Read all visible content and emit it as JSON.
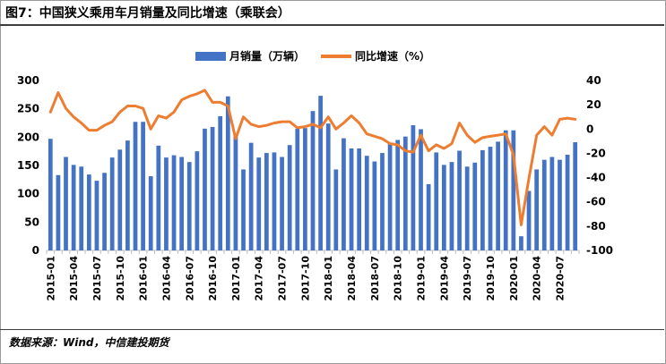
{
  "title": "图7：中国狭义乘用车月销量及同比增速（乘联会）",
  "source": "数据来源：Wind，中信建投期货",
  "colors": {
    "bar": "#4472C4",
    "line": "#ED7D31",
    "axis": "#bfbfbf"
  },
  "chart_data": {
    "type": "bar",
    "categories": [
      "2015-01",
      "2015-02",
      "2015-03",
      "2015-04",
      "2015-05",
      "2015-06",
      "2015-07",
      "2015-08",
      "2015-09",
      "2015-10",
      "2015-11",
      "2015-12",
      "2016-01",
      "2016-02",
      "2016-03",
      "2016-04",
      "2016-05",
      "2016-06",
      "2016-07",
      "2016-08",
      "2016-09",
      "2016-10",
      "2016-11",
      "2016-12",
      "2017-01",
      "2017-02",
      "2017-03",
      "2017-04",
      "2017-05",
      "2017-06",
      "2017-07",
      "2017-08",
      "2017-09",
      "2017-10",
      "2017-11",
      "2017-12",
      "2018-01",
      "2018-02",
      "2018-03",
      "2018-04",
      "2018-05",
      "2018-06",
      "2018-07",
      "2018-08",
      "2018-09",
      "2018-10",
      "2018-11",
      "2018-12",
      "2019-01",
      "2019-02",
      "2019-03",
      "2019-04",
      "2019-05",
      "2019-06",
      "2019-07",
      "2019-08",
      "2019-09",
      "2019-10",
      "2019-11",
      "2019-12",
      "2020-01",
      "2020-02",
      "2020-03",
      "2020-04",
      "2020-05",
      "2020-06",
      "2020-07",
      "2020-08",
      "2020-09"
    ],
    "tick_labels": [
      "2015-01",
      "2015-04",
      "2015-07",
      "2015-10",
      "2016-01",
      "2016-04",
      "2016-07",
      "2016-10",
      "2017-01",
      "2017-04",
      "2017-07",
      "2017-10",
      "2018-01",
      "2018-04",
      "2018-07",
      "2018-10",
      "2019-01",
      "2019-04",
      "2019-07",
      "2019-10",
      "2020-01",
      "2020-04",
      "2020-07"
    ],
    "series": [
      {
        "name": "月销量（万辆）",
        "type": "bar",
        "axis": "left",
        "values": [
          197,
          133,
          165,
          151,
          148,
          134,
          123,
          137,
          164,
          178,
          194,
          227,
          227,
          131,
          185,
          164,
          168,
          165,
          156,
          175,
          215,
          218,
          237,
          272,
          204,
          143,
          190,
          164,
          172,
          173,
          165,
          186,
          215,
          216,
          246,
          273,
          224,
          143,
          198,
          180,
          180,
          167,
          157,
          172,
          190,
          195,
          201,
          221,
          214,
          117,
          173,
          151,
          156,
          176,
          148,
          155,
          177,
          183,
          192,
          212,
          212,
          25,
          105,
          143,
          160,
          165,
          160,
          169,
          191
        ]
      },
      {
        "name": "同比增速（%）",
        "type": "line",
        "axis": "right",
        "values": [
          14,
          30,
          17,
          10,
          5,
          -1,
          -1,
          3,
          6,
          14,
          19,
          19,
          17,
          0,
          11,
          9,
          14,
          24,
          27,
          29,
          32,
          22,
          22,
          19,
          -8,
          10,
          4,
          2,
          3,
          5,
          6,
          6,
          1,
          2,
          4,
          1,
          10,
          0,
          5,
          11,
          5,
          -4,
          -6,
          -8,
          -12,
          -13,
          -18,
          -19,
          -5,
          -18,
          -13,
          -16,
          -12,
          5,
          -5,
          -11,
          -7,
          -6,
          -5,
          -4,
          -21,
          -79,
          -41,
          -5,
          2,
          -5,
          8,
          9,
          8
        ]
      }
    ],
    "y_left": {
      "min": 0,
      "max": 300,
      "ticks": [
        0,
        50,
        100,
        150,
        200,
        250,
        300
      ]
    },
    "y_right": {
      "min": -100,
      "max": 40,
      "ticks": [
        -100,
        -80,
        -60,
        -40,
        -20,
        0,
        20,
        40
      ]
    },
    "legend": "top-center",
    "grid": false
  }
}
